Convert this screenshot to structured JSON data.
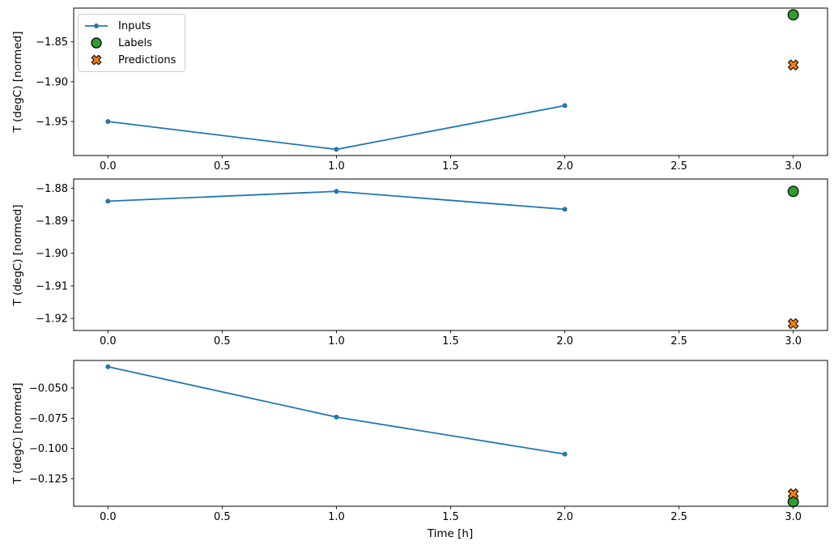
{
  "figure": {
    "xlabel": "Time [h]"
  },
  "legend": [
    {
      "label": "Inputs"
    },
    {
      "label": "Labels"
    },
    {
      "label": "Predictions"
    }
  ],
  "colors": {
    "inputs_blue": "#1f77b4",
    "labels_green": "#2ca02c",
    "predictions_orange": "#ff7f0e",
    "marker_edge": "#141414",
    "axis_black": "#000000",
    "legend_border": "#cccccc"
  },
  "chart_data": [
    {
      "type": "line",
      "title": "",
      "ylabel": "T (degC) [normed]",
      "xlim": [
        -0.15,
        3.15
      ],
      "ylim": [
        -1.9927,
        -1.8076
      ],
      "xticks": {
        "values": [
          0,
          0.5,
          1,
          1.5,
          2,
          2.5,
          3
        ],
        "labels": [
          "0.0",
          "0.5",
          "1.0",
          "1.5",
          "2.0",
          "2.5",
          "3.0"
        ]
      },
      "yticks": {
        "values": [
          -1.85,
          -1.9,
          -1.95
        ],
        "labels": [
          "−1.85",
          "−1.90",
          "−1.95"
        ]
      },
      "grid": false,
      "legend_position": "upper left",
      "series": [
        {
          "name": "Inputs",
          "style": "line",
          "marker": "dot",
          "color": "#1f77b4",
          "x": [
            0,
            1,
            2
          ],
          "y": [
            -1.95,
            -1.985,
            -1.93
          ]
        },
        {
          "name": "Labels",
          "style": "scatter",
          "marker": "circle",
          "color": "#2ca02c",
          "x": [
            3
          ],
          "y": [
            -1.816
          ]
        },
        {
          "name": "Predictions",
          "style": "scatter",
          "marker": "X",
          "color": "#ff7f0e",
          "x": [
            3
          ],
          "y": [
            -1.879
          ]
        }
      ]
    },
    {
      "type": "line",
      "title": "",
      "ylabel": "T (degC) [normed]",
      "xlim": [
        -0.15,
        3.15
      ],
      "ylim": [
        -1.9237,
        -1.8772
      ],
      "xticks": {
        "values": [
          0,
          0.5,
          1,
          1.5,
          2,
          2.5,
          3
        ],
        "labels": [
          "0.0",
          "0.5",
          "1.0",
          "1.5",
          "2.0",
          "2.5",
          "3.0"
        ]
      },
      "yticks": {
        "values": [
          -1.88,
          -1.89,
          -1.9,
          -1.91,
          -1.92
        ],
        "labels": [
          "−1.88",
          "−1.89",
          "−1.90",
          "−1.91",
          "−1.92"
        ]
      },
      "grid": false,
      "series": [
        {
          "name": "Inputs",
          "style": "line",
          "marker": "dot",
          "color": "#1f77b4",
          "x": [
            0,
            1,
            2
          ],
          "y": [
            -1.884,
            -1.881,
            -1.8865
          ]
        },
        {
          "name": "Labels",
          "style": "scatter",
          "marker": "circle",
          "color": "#2ca02c",
          "x": [
            3
          ],
          "y": [
            -1.881
          ]
        },
        {
          "name": "Predictions",
          "style": "scatter",
          "marker": "X",
          "color": "#ff7f0e",
          "x": [
            3
          ],
          "y": [
            -1.9216
          ]
        }
      ]
    },
    {
      "type": "line",
      "title": "",
      "ylabel": "T (degC) [normed]",
      "xlim": [
        -0.15,
        3.15
      ],
      "ylim": [
        -0.1478,
        -0.0272
      ],
      "xticks": {
        "values": [
          0,
          0.5,
          1,
          1.5,
          2,
          2.5,
          3
        ],
        "labels": [
          "0.0",
          "0.5",
          "1.0",
          "1.5",
          "2.0",
          "2.5",
          "3.0"
        ]
      },
      "yticks": {
        "values": [
          -0.05,
          -0.075,
          -0.1,
          -0.125
        ],
        "labels": [
          "−0.050",
          "−0.075",
          "−0.100",
          "−0.125"
        ]
      },
      "grid": false,
      "series": [
        {
          "name": "Inputs",
          "style": "line",
          "marker": "dot",
          "color": "#1f77b4",
          "x": [
            0,
            1,
            2
          ],
          "y": [
            -0.0324,
            -0.074,
            -0.1047
          ]
        },
        {
          "name": "Labels",
          "style": "scatter",
          "marker": "circle",
          "color": "#2ca02c",
          "x": [
            3
          ],
          "y": [
            -0.144
          ]
        },
        {
          "name": "Predictions",
          "style": "scatter",
          "marker": "X",
          "color": "#ff7f0e",
          "x": [
            3
          ],
          "y": [
            -0.1375
          ]
        }
      ]
    }
  ]
}
